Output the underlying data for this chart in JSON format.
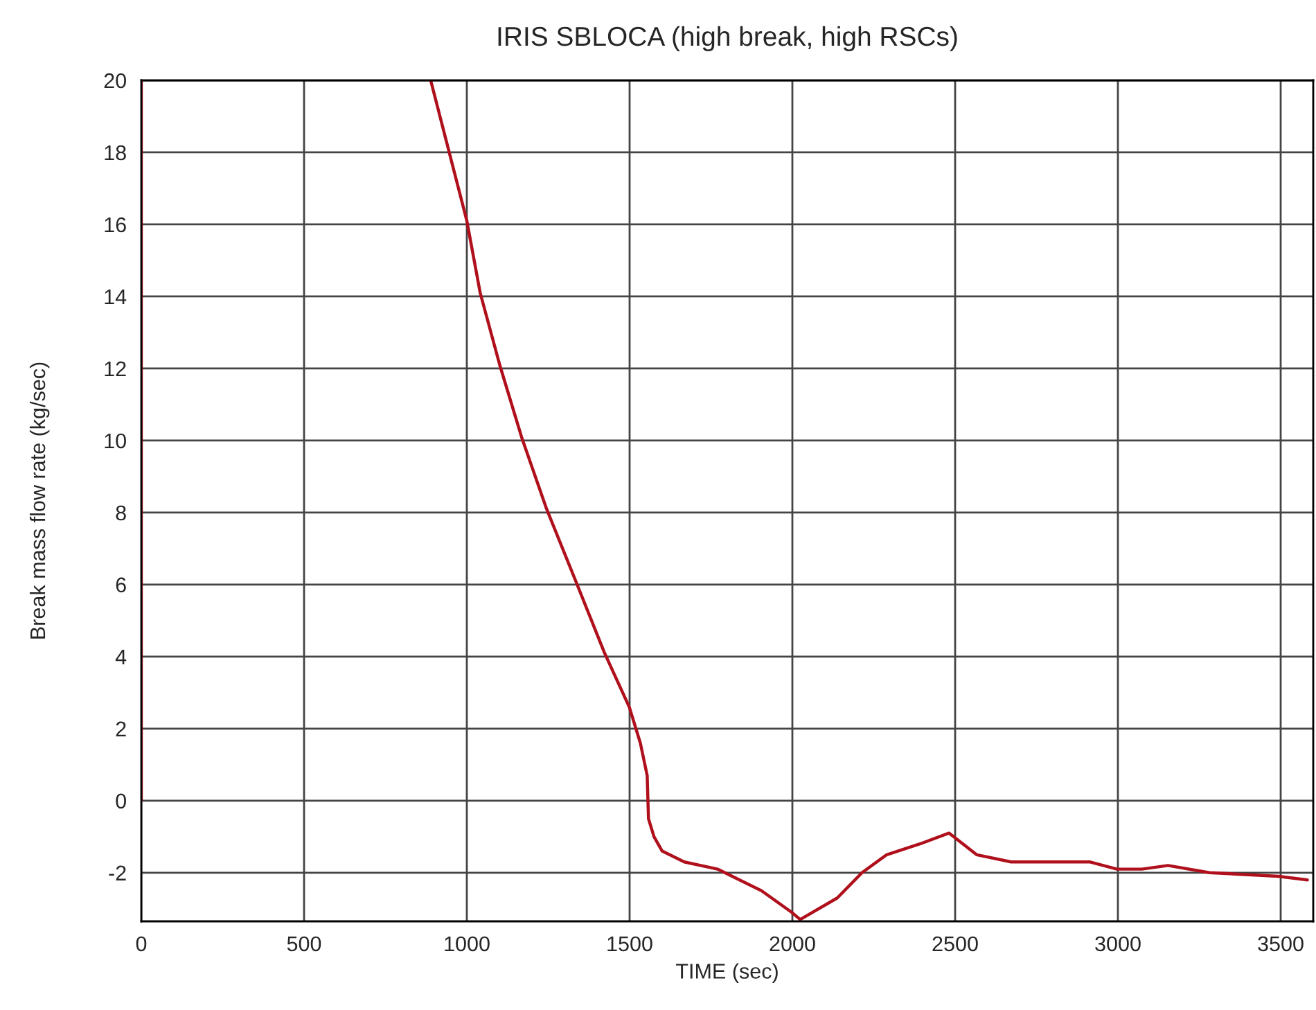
{
  "chart_data": {
    "type": "line",
    "title": "IRIS SBLOCA (high break, high RSCs)",
    "xlabel": "TIME (sec)",
    "ylabel": "Break mass flow rate (kg/sec)",
    "xlim": [
      0,
      3600
    ],
    "ylim": [
      -3.35,
      20
    ],
    "xticks": [
      0,
      500,
      1000,
      1500,
      2000,
      2500,
      3000,
      3500
    ],
    "yticks": [
      -2,
      0,
      2,
      4,
      6,
      8,
      10,
      12,
      14,
      16,
      18,
      20
    ],
    "grid": true,
    "legend": false,
    "marker": "none",
    "line_style": "solid",
    "series": [
      {
        "color": "#b0101c",
        "x": [
          0,
          0,
          440,
          889,
          1000,
          1041,
          1101,
          1168,
          1245,
          1330,
          1423,
          1499,
          1533,
          1554,
          1558,
          1575,
          1600,
          1668,
          1770,
          1905,
          1998,
          2024,
          2138,
          2214,
          2290,
          2392,
          2481,
          2566,
          2672,
          2913,
          2997,
          3074,
          3154,
          3281,
          3493,
          3582
        ],
        "values": [
          0,
          20,
          null,
          20,
          16.1,
          14.1,
          12.1,
          10.1,
          8.1,
          6.2,
          4.1,
          2.6,
          1.6,
          0.7,
          -0.5,
          -1.0,
          -1.4,
          -1.7,
          -1.9,
          -2.5,
          -3.1,
          -3.3,
          -2.7,
          -2.0,
          -1.5,
          -1.2,
          -0.9,
          -1.5,
          -1.7,
          -1.7,
          -1.9,
          -1.9,
          -1.8,
          -2.0,
          -2.1,
          -2.2
        ]
      }
    ]
  }
}
